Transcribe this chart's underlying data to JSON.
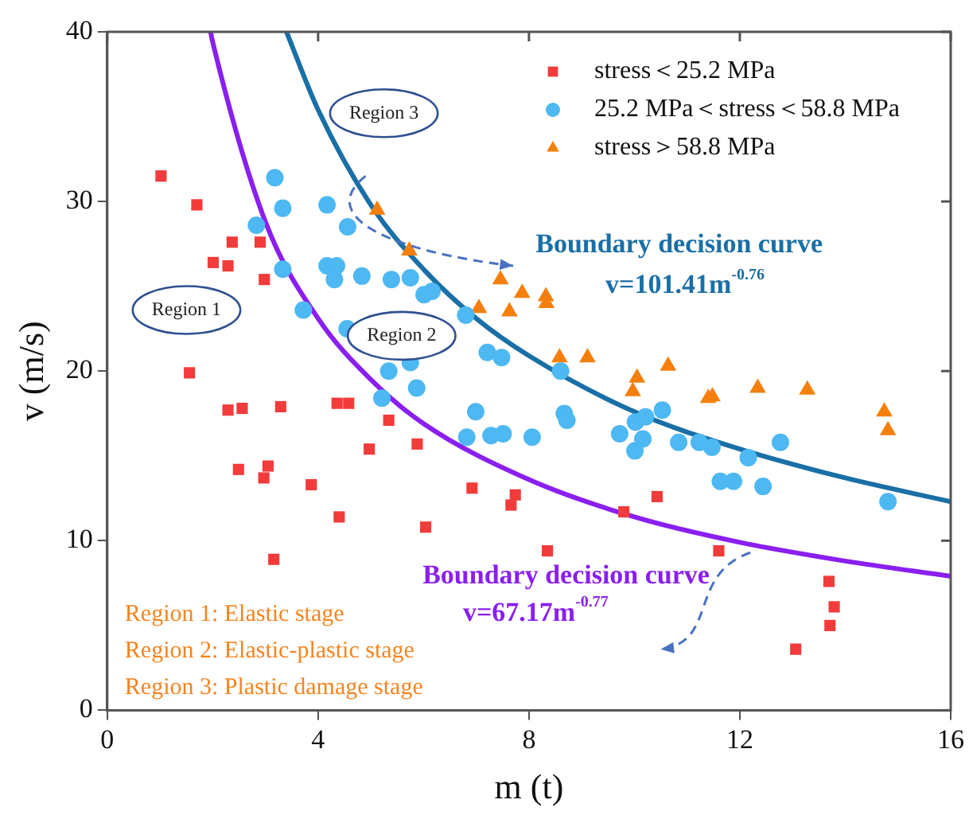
{
  "chart_data": {
    "type": "scatter",
    "xlabel": "m (t)",
    "ylabel": "v (m/s)",
    "xlim": [
      0,
      16
    ],
    "ylim": [
      0,
      40
    ],
    "xticks": [
      0,
      4,
      8,
      12,
      16
    ],
    "yticks": [
      0,
      10,
      20,
      30,
      40
    ],
    "grid": false,
    "legend": "top right",
    "series": [
      {
        "name": "stress＜25.2 MPa",
        "color": "#f23b3b",
        "marker": "square",
        "x": [
          1.02,
          1.7,
          2.37,
          2.9,
          2.01,
          2.29,
          2.98,
          1.56,
          2.29,
          2.56,
          3.29,
          4.36,
          4.58,
          5.34,
          4.97,
          2.49,
          3.05,
          2.97,
          3.87,
          4.4,
          3.16,
          5.88,
          6.04,
          6.92,
          7.74,
          7.66,
          8.35,
          9.8,
          10.43,
          11.6,
          13.69,
          13.79,
          13.71,
          13.06
        ],
        "values": [
          31.5,
          29.8,
          27.6,
          27.6,
          26.4,
          26.2,
          25.4,
          19.9,
          17.7,
          17.8,
          17.9,
          18.1,
          18.1,
          17.1,
          15.4,
          14.2,
          14.4,
          13.7,
          13.3,
          11.4,
          8.9,
          15.7,
          10.8,
          13.1,
          12.7,
          12.1,
          9.4,
          11.7,
          12.6,
          9.4,
          7.6,
          6.1,
          5.0,
          3.6
        ]
      },
      {
        "name": "25.2 MPa＜stress＜58.8 MPa",
        "color": "#4db8f2",
        "marker": "circle",
        "x": [
          3.18,
          3.33,
          4.17,
          2.83,
          4.56,
          3.33,
          4.17,
          4.35,
          4.31,
          4.83,
          5.39,
          3.72,
          4.55,
          5.34,
          5.21,
          5.75,
          6.16,
          6.01,
          6.8,
          7.21,
          7.48,
          5.75,
          5.87,
          8.6,
          6.99,
          6.82,
          7.28,
          7.51,
          8.06,
          8.67,
          8.72,
          9.72,
          10.02,
          10.21,
          10.53,
          10.16,
          10.01,
          10.84,
          11.23,
          11.47,
          12.16,
          12.77,
          11.63,
          11.88,
          12.44,
          14.81
        ],
        "values": [
          31.4,
          29.6,
          29.8,
          28.6,
          28.5,
          26.0,
          26.2,
          26.2,
          25.4,
          25.6,
          25.4,
          23.6,
          22.5,
          20.0,
          18.4,
          25.5,
          24.7,
          24.5,
          23.3,
          21.1,
          20.8,
          20.5,
          19.0,
          20.0,
          17.6,
          16.1,
          16.2,
          16.3,
          16.1,
          17.5,
          17.1,
          16.3,
          17.0,
          17.3,
          17.7,
          16.0,
          15.3,
          15.8,
          15.8,
          15.5,
          14.9,
          15.8,
          13.5,
          13.5,
          13.2,
          12.3
        ]
      },
      {
        "name": "stress＞58.8 MPa",
        "color": "#f57f0c",
        "marker": "triangle",
        "x": [
          5.12,
          5.73,
          7.46,
          7.87,
          8.27,
          8.32,
          8.33,
          7.05,
          7.63,
          8.58,
          9.11,
          10.05,
          9.97,
          10.64,
          11.4,
          11.48,
          12.34,
          13.28,
          14.74,
          14.81
        ],
        "values": [
          29.5,
          27.1,
          25.4,
          24.6,
          null,
          24.4,
          24.0,
          23.7,
          23.5,
          20.8,
          20.8,
          19.6,
          18.8,
          20.3,
          18.4,
          18.5,
          19.0,
          18.9,
          17.6,
          16.5
        ]
      },
      {
        "type": "line",
        "color": "#1a6fa6",
        "marker": "none",
        "x": [
          3.4,
          4,
          5,
          6,
          7,
          8,
          10,
          12,
          14,
          16
        ],
        "values": [
          40.0,
          35.4,
          29.8,
          26.0,
          23.1,
          20.9,
          17.6,
          15.4,
          13.7,
          12.3
        ]
      },
      {
        "type": "line",
        "color": "#8a1ff0",
        "marker": "none",
        "x": [
          1.96,
          2,
          3,
          4,
          5,
          6,
          8,
          10,
          12,
          14,
          16
        ],
        "values": [
          40.0,
          39.4,
          28.8,
          23.1,
          19.5,
          16.9,
          13.6,
          11.4,
          9.9,
          8.8,
          7.9
        ]
      }
    ],
    "annotations": [
      "Region 1",
      "Region 2",
      "Region 3",
      "Boundary decision curve",
      "v=101.41m$^{-0.76}$",
      "Boundary decision curve",
      "v=67.17m$^{-0.77}$",
      "Region 1: Elastic stage",
      "Region 2: Elastic-plastic stage",
      "Region 3: Plastic damage stage"
    ]
  }
}
